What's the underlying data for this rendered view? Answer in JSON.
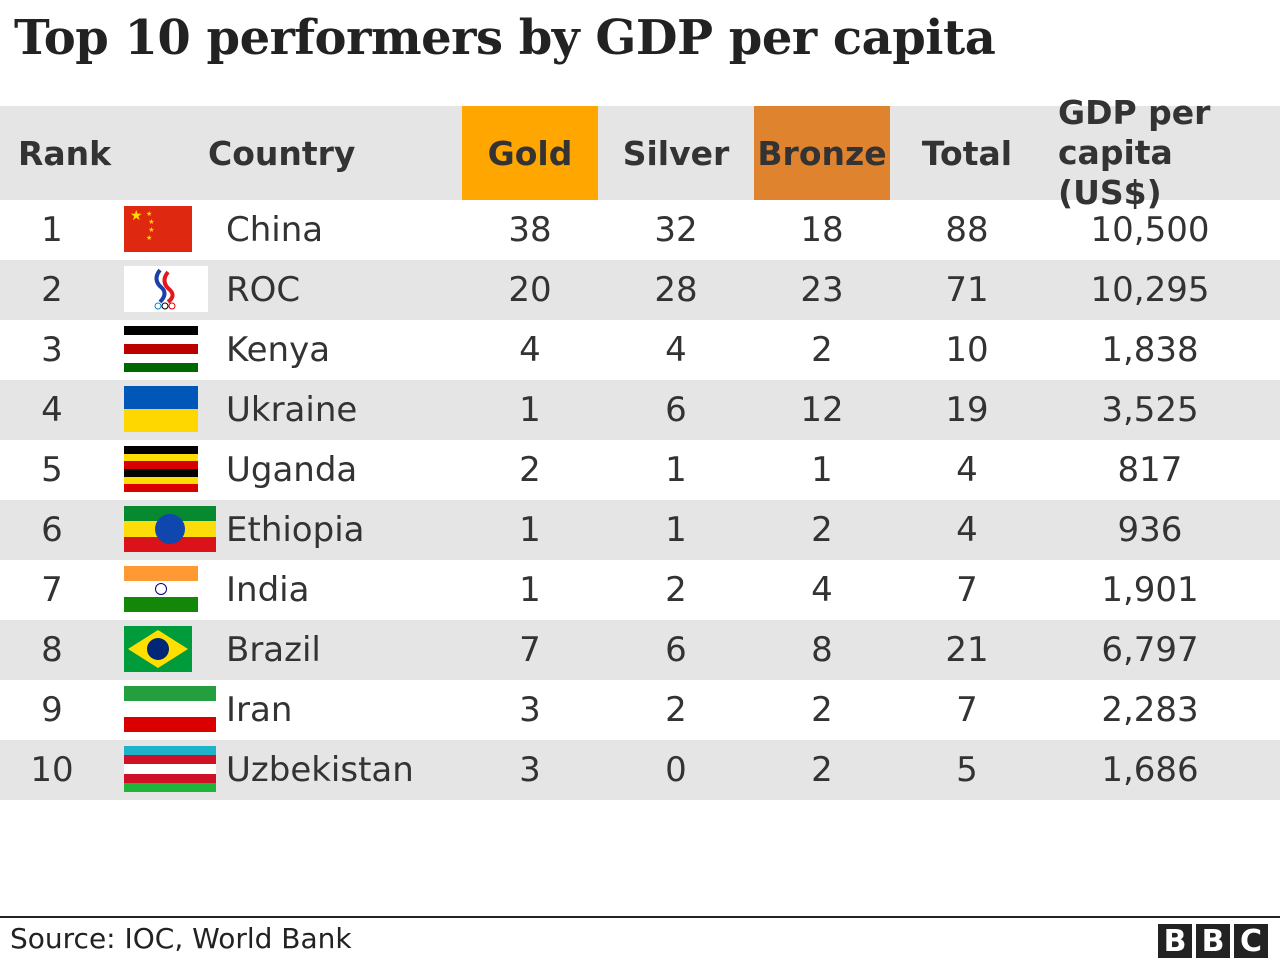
{
  "title": "Top 10 performers by GDP per capita",
  "colors": {
    "gold": "#ffa600",
    "bronze": "#e0832f",
    "header_bg": "#e5e5e5",
    "alt_row_bg": "#e5e5e5"
  },
  "chart_data": {
    "type": "table",
    "title": "Top 10 performers by GDP per capita",
    "columns": [
      "Rank",
      "Country",
      "Gold",
      "Silver",
      "Bronze",
      "Total",
      "GDP per capita (US$)"
    ],
    "rows": [
      {
        "rank": "1",
        "country": "China",
        "gold": "38",
        "silver": "32",
        "bronze": "18",
        "total": "88",
        "gdp": "10,500",
        "flag": {
          "type": "china",
          "colors": [
            "#de2910",
            "#ffde00"
          ]
        }
      },
      {
        "rank": "2",
        "country": "ROC",
        "gold": "20",
        "silver": "28",
        "bronze": "23",
        "total": "71",
        "gdp": "10,295",
        "flag": {
          "type": "roc",
          "colors": [
            "#ffffff",
            "#1c3fa8",
            "#e4181c"
          ]
        }
      },
      {
        "rank": "3",
        "country": "Kenya",
        "gold": "4",
        "silver": "4",
        "bronze": "2",
        "total": "10",
        "gdp": "1,838",
        "flag": {
          "type": "stripes",
          "colors": [
            "#000000",
            "#ffffff",
            "#bb0000",
            "#ffffff",
            "#006600"
          ]
        }
      },
      {
        "rank": "4",
        "country": "Ukraine",
        "gold": "1",
        "silver": "6",
        "bronze": "12",
        "total": "19",
        "gdp": "3,525",
        "flag": {
          "type": "stripes",
          "colors": [
            "#0057b7",
            "#ffd700"
          ]
        }
      },
      {
        "rank": "5",
        "country": "Uganda",
        "gold": "2",
        "silver": "1",
        "bronze": "1",
        "total": "4",
        "gdp": "817",
        "flag": {
          "type": "stripes",
          "colors": [
            "#000000",
            "#fcdc04",
            "#d90000",
            "#000000",
            "#fcdc04",
            "#d90000"
          ]
        }
      },
      {
        "rank": "6",
        "country": "Ethiopia",
        "gold": "1",
        "silver": "1",
        "bronze": "2",
        "total": "4",
        "gdp": "936",
        "flag": {
          "type": "stripes",
          "colors": [
            "#078930",
            "#fcdd09",
            "#da121a"
          ],
          "emblem": "#0f47af"
        }
      },
      {
        "rank": "7",
        "country": "India",
        "gold": "1",
        "silver": "2",
        "bronze": "4",
        "total": "7",
        "gdp": "1,901",
        "flag": {
          "type": "stripes",
          "colors": [
            "#ff9933",
            "#ffffff",
            "#138808"
          ],
          "emblem": "#000080"
        }
      },
      {
        "rank": "8",
        "country": "Brazil",
        "gold": "7",
        "silver": "6",
        "bronze": "8",
        "total": "21",
        "gdp": "6,797",
        "flag": {
          "type": "brazil",
          "colors": [
            "#009c3b",
            "#ffdf00",
            "#002776"
          ]
        }
      },
      {
        "rank": "9",
        "country": "Iran",
        "gold": "3",
        "silver": "2",
        "bronze": "2",
        "total": "7",
        "gdp": "2,283",
        "flag": {
          "type": "stripes",
          "colors": [
            "#239f40",
            "#ffffff",
            "#da0000"
          ]
        }
      },
      {
        "rank": "10",
        "country": "Uzbekistan",
        "gold": "3",
        "silver": "0",
        "bronze": "2",
        "total": "5",
        "gdp": "1,686",
        "flag": {
          "type": "stripes",
          "colors": [
            "#1eb3c8",
            "#ce1126",
            "#ffffff",
            "#ce1126",
            "#1eb53a"
          ]
        }
      }
    ]
  },
  "header": {
    "rank": "Rank",
    "country": "Country",
    "gold": "Gold",
    "silver": "Silver",
    "bronze": "Bronze",
    "total": "Total",
    "gdp_line1": "GDP per",
    "gdp_line2": "capita (US$)"
  },
  "footer": {
    "source": "Source: IOC, World Bank",
    "logo": "BBC"
  }
}
